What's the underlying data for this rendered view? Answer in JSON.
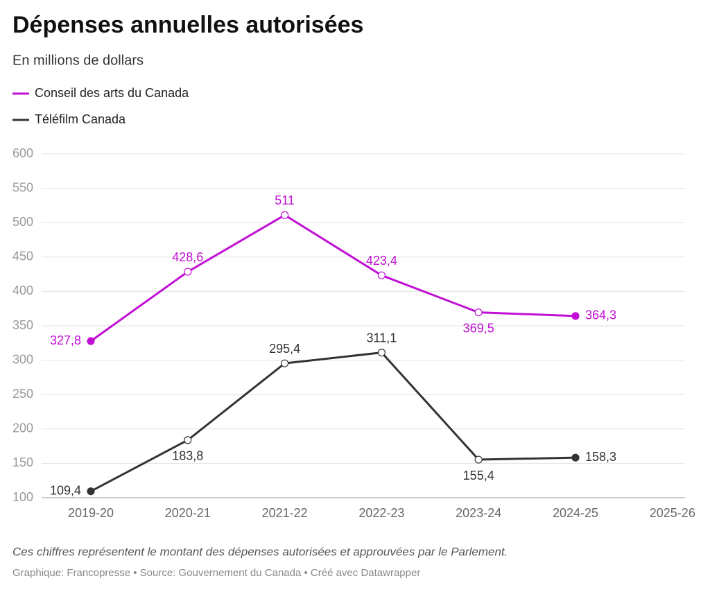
{
  "chart_data": {
    "type": "line",
    "title": "Dépenses annuelles autorisées",
    "subtitle": "En millions de dollars",
    "categories": [
      "2019-20",
      "2020-21",
      "2021-22",
      "2022-23",
      "2023-24",
      "2024-25",
      "2025-26"
    ],
    "series": [
      {
        "name": "Conseil des arts du Canada",
        "color": "#c10fd4",
        "values": [
          327.8,
          428.6,
          511,
          423.4,
          369.5,
          364.3,
          null
        ],
        "value_labels": [
          "327,8",
          "428,6",
          "511",
          "423,4",
          "369,5",
          "364,3",
          null
        ]
      },
      {
        "name": "Téléfilm Canada",
        "color": "#333333",
        "values": [
          109.4,
          183.8,
          295.4,
          311.1,
          155.4,
          158.3,
          null
        ],
        "value_labels": [
          "109,4",
          "183,8",
          "295,4",
          "311,1",
          "155,4",
          "158,3",
          null
        ]
      }
    ],
    "ylim": [
      100,
      600
    ],
    "yticks": [
      100,
      150,
      200,
      250,
      300,
      350,
      400,
      450,
      500,
      550,
      600
    ],
    "grid": true,
    "note": "Ces chiffres représentent le montant des dépenses autorisées et approuvées par le Parlement.",
    "credit": "Graphique: Francopresse • Source: Gouvernement du Canada • Créé avec Datawrapper"
  }
}
